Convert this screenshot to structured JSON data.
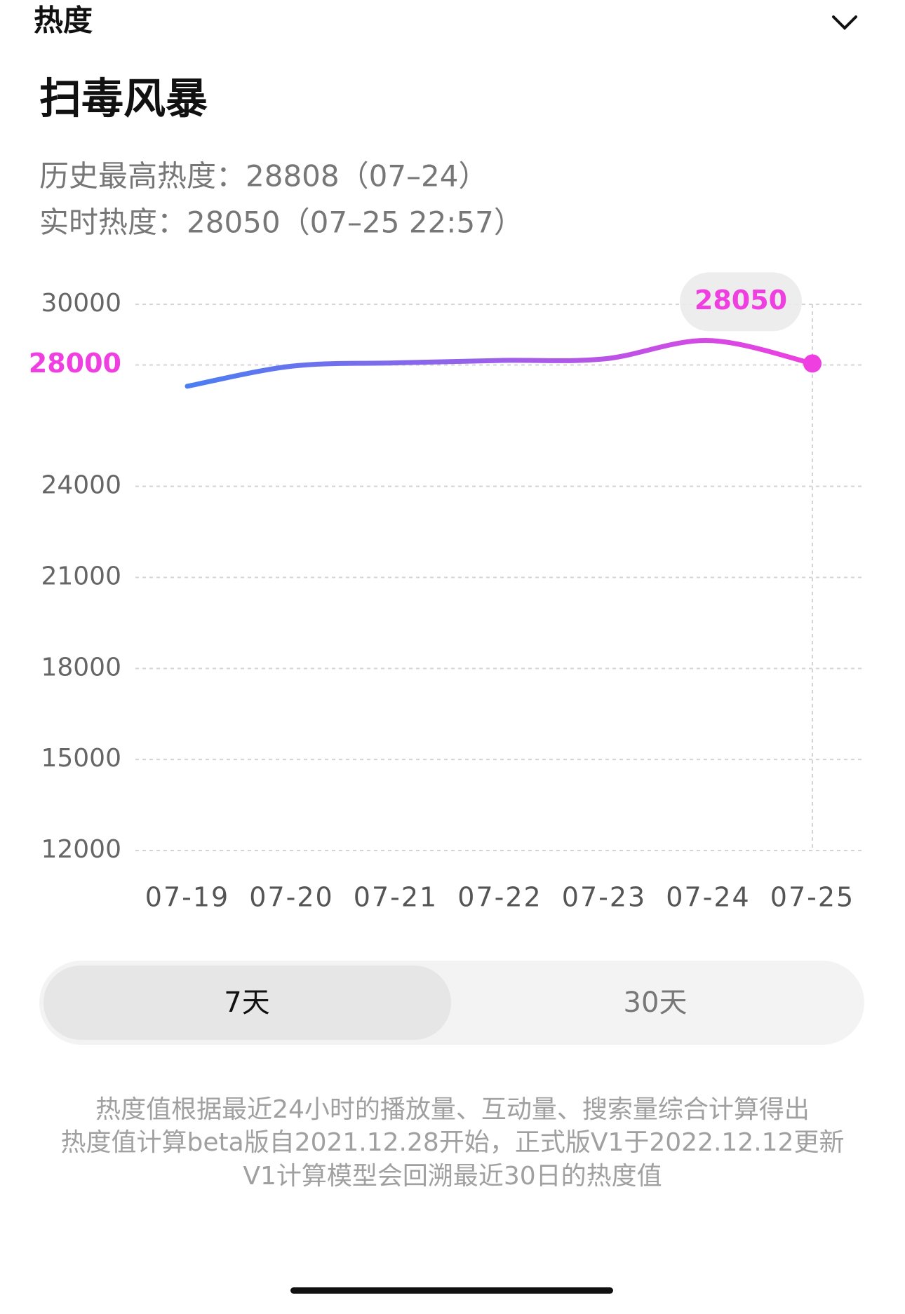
{
  "header": {
    "title": "热度"
  },
  "show": {
    "title": "扫毒风暴",
    "history_peak": "历史最高热度：28808（07–24）",
    "realtime": "实时热度：28050（07–25 22:57）"
  },
  "chart_data": {
    "type": "line",
    "categories": [
      "07-19",
      "07-20",
      "07-21",
      "07-22",
      "07-23",
      "07-24",
      "07-25"
    ],
    "series": [
      {
        "name": "热度",
        "values": [
          27300,
          27960,
          28070,
          28150,
          28200,
          28808,
          28050
        ]
      }
    ],
    "gradient": [
      "#4a7ef2",
      "#f03fe0"
    ],
    "ylim": [
      12000,
      30000
    ],
    "yticks": [
      12000,
      15000,
      18000,
      21000,
      24000,
      28000,
      30000
    ],
    "grid": true
  },
  "toggle": {
    "options": [
      "7天",
      "30天"
    ]
  },
  "footnote": [
    "热度值根据最近24小时的播放量、互动量、搜索量综合计算得出",
    "热度值计算beta版自2021.12.28开始，正式版V1于2022.12.12更新",
    "V1计算模型会回溯最近30日的热度值"
  ]
}
